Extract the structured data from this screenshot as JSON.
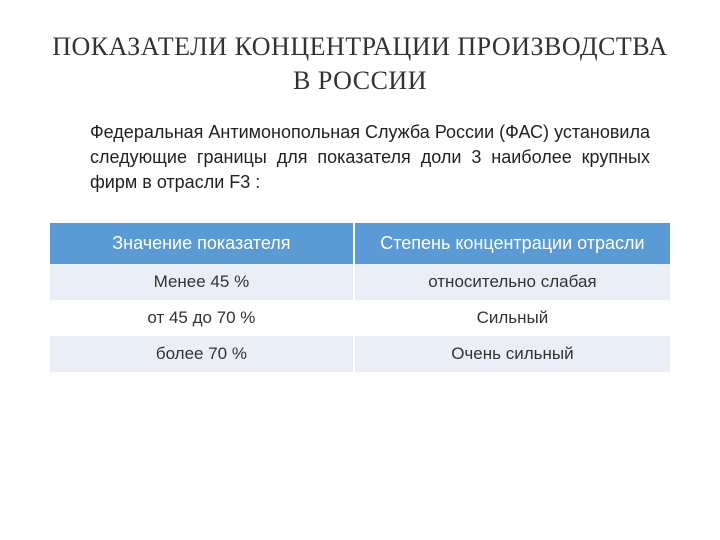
{
  "title": "ПОКАЗАТЕЛИ КОНЦЕНТРАЦИИ ПРОИЗВОДСТВА В РОССИИ",
  "description": "Федеральная Антимонопольная Служба России (ФАС) установила следующие границы для показателя доли 3 наиболее крупных фирм в отрасли F3 :",
  "table": {
    "type": "table",
    "header_bg": "#5b9bd5",
    "header_text_color": "#ffffff",
    "row_alt_bg": "#eaeff7",
    "row_plain_bg": "#ffffff",
    "text_color": "#333333",
    "border_color": "#ffffff",
    "font_size_header": 18,
    "font_size_cell": 17,
    "columns": [
      {
        "label": "Значение показателя",
        "width": "49%"
      },
      {
        "label": "Степень концентрации отрасли",
        "width": "51%"
      }
    ],
    "rows": [
      {
        "cells": [
          "Менее 45 %",
          "относительно слабая"
        ],
        "alt": true
      },
      {
        "cells": [
          "от 45 до 70 %",
          "Сильный"
        ],
        "alt": false
      },
      {
        "cells": [
          "более 70 %",
          "Очень сильный"
        ],
        "alt": true
      }
    ]
  },
  "background_color": "#ffffff"
}
